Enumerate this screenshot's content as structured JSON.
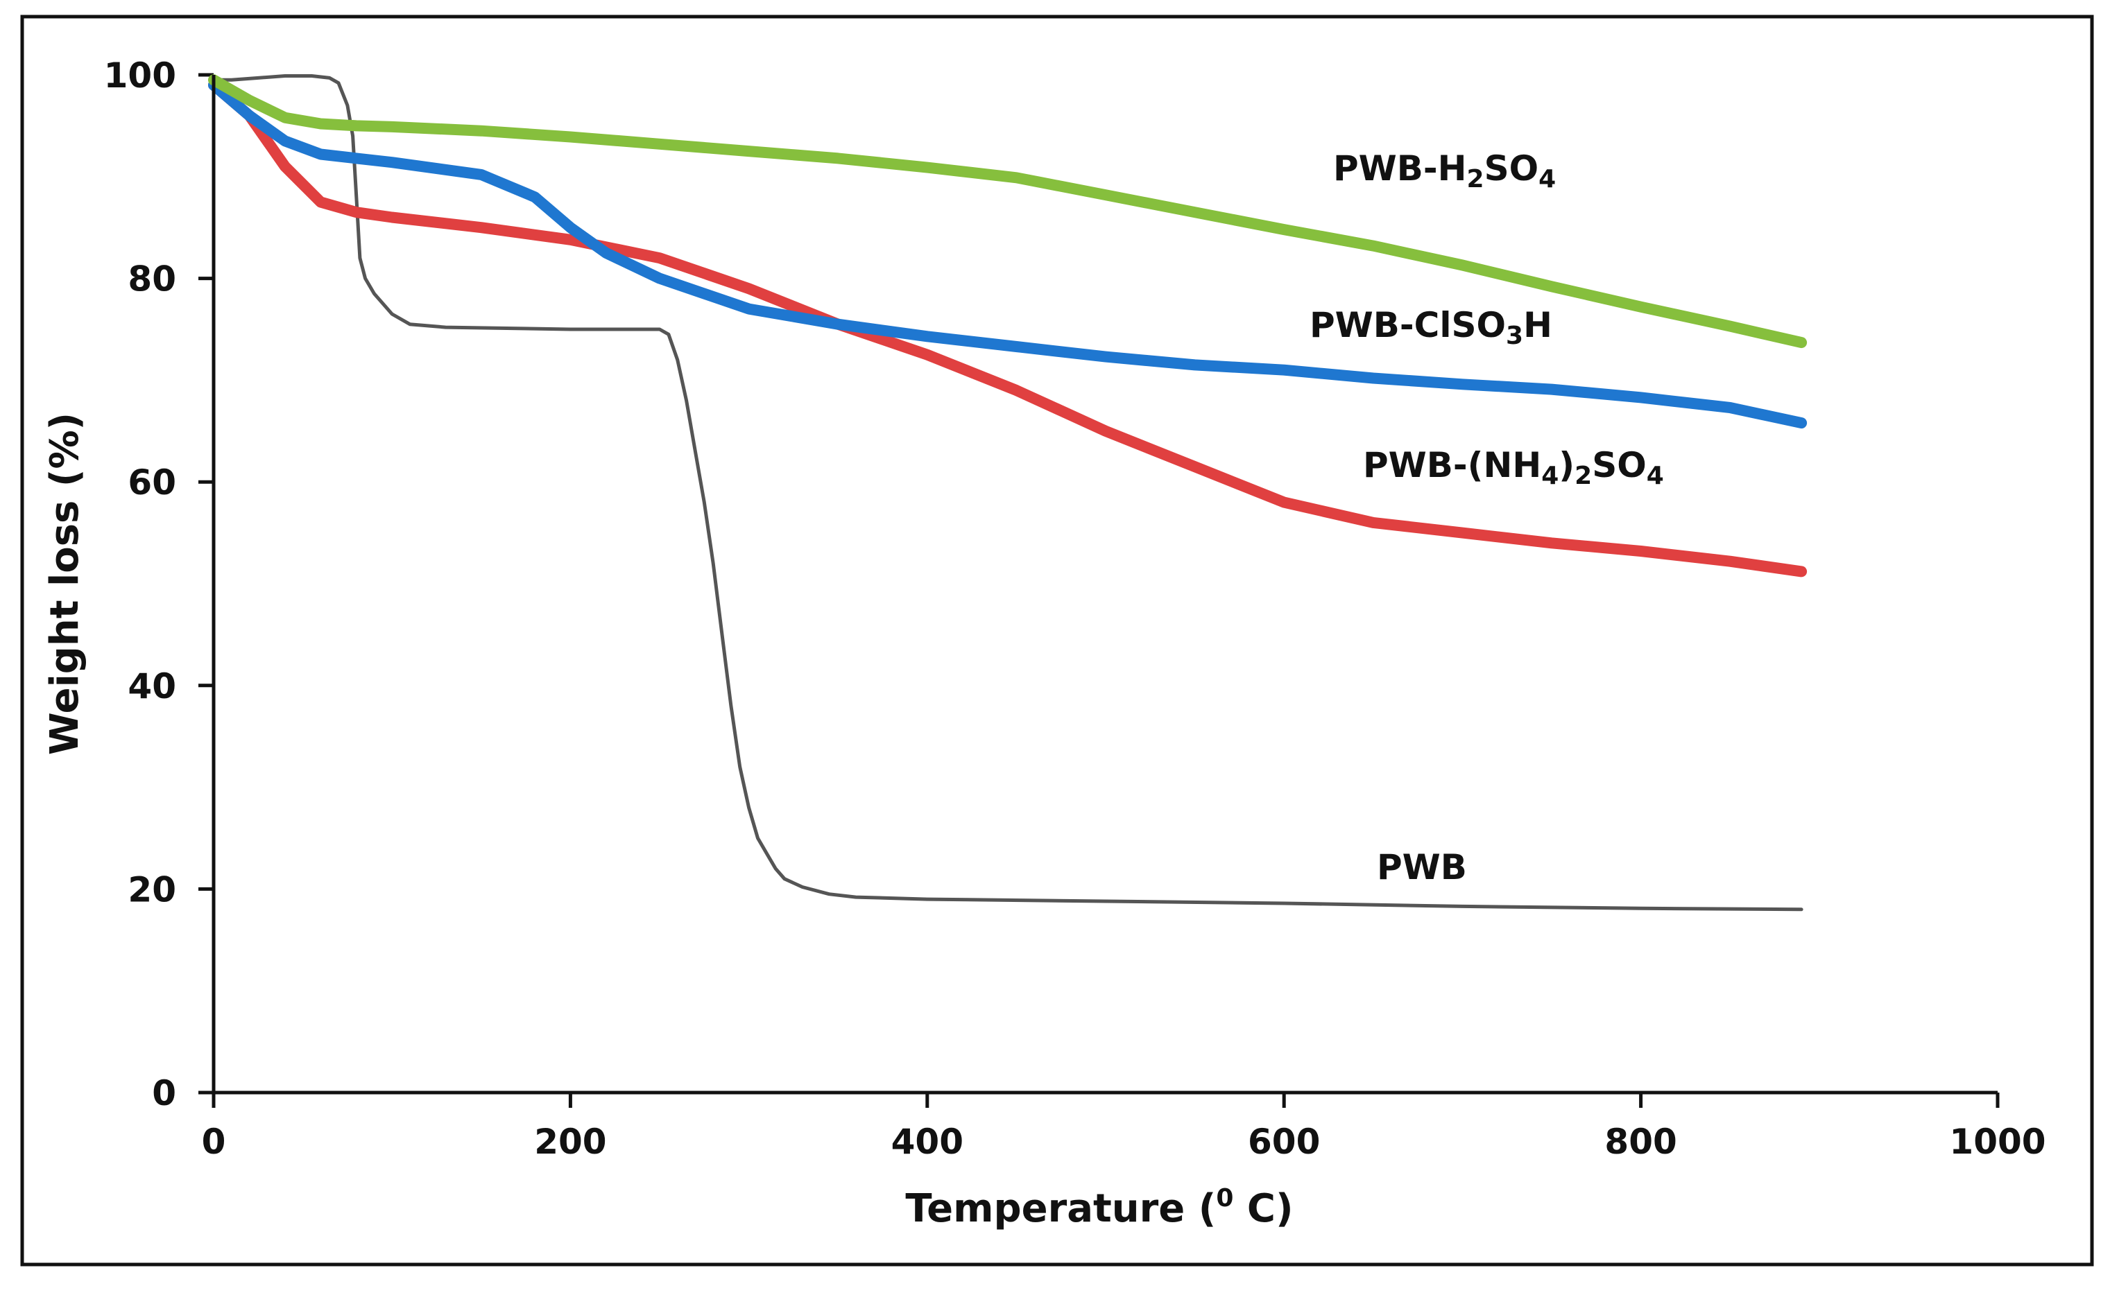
{
  "chart_data": {
    "type": "line",
    "title": "",
    "xlabel": "Temperature (",
    "xlabel_sup": "0",
    "xlabel_end": " C)",
    "ylabel": "Weight loss (%)",
    "xlim": [
      0,
      1000
    ],
    "ylim": [
      0,
      100
    ],
    "xticks": [
      "0",
      "200",
      "400",
      "600",
      "800",
      "1000"
    ],
    "yticks": [
      "0",
      "20",
      "40",
      "60",
      "80",
      "100"
    ],
    "series": [
      {
        "name": "PWB",
        "label_parts": [
          {
            "t": "PWB",
            "s": ""
          }
        ],
        "color": "#555555",
        "stroke": "thin",
        "x": [
          0,
          10,
          25,
          40,
          55,
          65,
          70,
          75,
          78,
          80,
          82,
          85,
          90,
          100,
          110,
          130,
          200,
          250,
          255,
          260,
          265,
          270,
          275,
          280,
          285,
          290,
          295,
          300,
          305,
          310,
          315,
          320,
          330,
          345,
          360,
          400,
          500,
          600,
          700,
          800,
          890
        ],
        "y": [
          99.5,
          99.5,
          99.7,
          99.9,
          99.9,
          99.7,
          99.2,
          97,
          94,
          88,
          82,
          80,
          78.5,
          76.5,
          75.5,
          75.2,
          75,
          75,
          74.5,
          72,
          68,
          63,
          58,
          52,
          45,
          38,
          32,
          28,
          25,
          23.5,
          22,
          21,
          20.2,
          19.5,
          19.2,
          19,
          18.8,
          18.6,
          18.3,
          18.1,
          18
        ]
      },
      {
        "name": "PWB-(NH4)2SO4",
        "label_parts": [
          {
            "t": "PWB-(NH",
            "s": ""
          },
          {
            "t": "4",
            "s": "sub"
          },
          {
            "t": ")",
            "s": ""
          },
          {
            "t": "2",
            "s": "sub"
          },
          {
            "t": "SO",
            "s": ""
          },
          {
            "t": "4",
            "s": "sub"
          }
        ],
        "color": "#e04040",
        "stroke": "thick",
        "x": [
          0,
          20,
          40,
          60,
          80,
          100,
          150,
          200,
          250,
          300,
          350,
          400,
          450,
          500,
          550,
          600,
          650,
          700,
          750,
          800,
          850,
          890
        ],
        "y": [
          99,
          96,
          91,
          87.5,
          86.5,
          86,
          85,
          83.8,
          82,
          79,
          75.5,
          72.5,
          69,
          65,
          61.5,
          58,
          56,
          55,
          54,
          53.2,
          52.2,
          51.2
        ]
      },
      {
        "name": "PWB-ClSO3H",
        "label_parts": [
          {
            "t": "PWB-ClSO",
            "s": ""
          },
          {
            "t": "3",
            "s": "sub"
          },
          {
            "t": "H",
            "s": ""
          }
        ],
        "color": "#1f77d0",
        "stroke": "thick",
        "x": [
          0,
          20,
          40,
          60,
          80,
          100,
          150,
          180,
          200,
          220,
          250,
          300,
          350,
          400,
          450,
          500,
          550,
          600,
          650,
          700,
          750,
          800,
          850,
          890
        ],
        "y": [
          99,
          96,
          93.5,
          92.2,
          91.8,
          91.4,
          90.2,
          88,
          85,
          82.5,
          80,
          77,
          75.5,
          74.3,
          73.3,
          72.3,
          71.5,
          71,
          70.2,
          69.6,
          69.1,
          68.3,
          67.3,
          65.8
        ]
      },
      {
        "name": "PWB-H2SO4",
        "label_parts": [
          {
            "t": "PWB-H",
            "s": ""
          },
          {
            "t": "2",
            "s": "sub"
          },
          {
            "t": "SO",
            "s": ""
          },
          {
            "t": "4",
            "s": "sub"
          }
        ],
        "color": "#86bf3d",
        "stroke": "thick",
        "x": [
          0,
          20,
          40,
          60,
          80,
          100,
          150,
          200,
          250,
          300,
          350,
          400,
          450,
          500,
          550,
          600,
          650,
          700,
          750,
          800,
          850,
          890
        ],
        "y": [
          99.5,
          97.5,
          95.8,
          95.2,
          95,
          94.9,
          94.5,
          93.9,
          93.2,
          92.5,
          91.8,
          90.9,
          89.9,
          88.2,
          86.5,
          84.8,
          83.2,
          81.3,
          79.2,
          77.2,
          75.3,
          73.7
        ]
      }
    ]
  }
}
